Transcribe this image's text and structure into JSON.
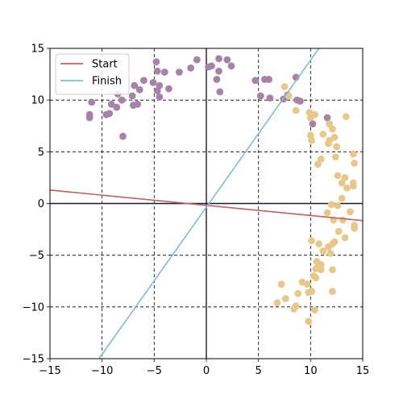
{
  "chart_data": {
    "type": "scatter",
    "title": "",
    "xlabel": "",
    "ylabel": "",
    "xlim": [
      -15,
      15
    ],
    "ylim": [
      -15,
      15
    ],
    "xticks": [
      -15,
      -10,
      -5,
      0,
      5,
      10,
      15
    ],
    "yticks": [
      -15,
      -10,
      -5,
      0,
      5,
      10,
      15
    ],
    "xtick_labels": [
      "−15",
      "−10",
      "−5",
      "0",
      "5",
      "10",
      "15"
    ],
    "ytick_labels": [
      "−15",
      "−10",
      "−5",
      "0",
      "5",
      "10",
      "15"
    ],
    "grid": true,
    "legend_position": "top-left",
    "lines": [
      {
        "name": "Start",
        "color": "#c06060",
        "x": [
          -15,
          15
        ],
        "y": [
          1.3,
          -1.65
        ]
      },
      {
        "name": "Finish",
        "color": "#80bcd0",
        "x": [
          -10.3,
          10.8
        ],
        "y": [
          -15,
          15
        ]
      }
    ],
    "series": [
      {
        "color": "#a681a8",
        "points": [
          [
            -11.2,
            8.3
          ],
          [
            -11.2,
            8.6
          ],
          [
            -11.0,
            9.8
          ],
          [
            -9.6,
            8.6
          ],
          [
            -9.3,
            8.7
          ],
          [
            -9.1,
            9.6
          ],
          [
            -8.6,
            9.3
          ],
          [
            -8.5,
            10.6
          ],
          [
            -8.1,
            10.0
          ],
          [
            -8.0,
            6.5
          ],
          [
            -7.1,
            10.4
          ],
          [
            -7.0,
            9.5
          ],
          [
            -6.9,
            11.4
          ],
          [
            -6.6,
            9.6
          ],
          [
            -6.4,
            11.0
          ],
          [
            -6.0,
            11.9
          ],
          [
            -5.1,
            11.7
          ],
          [
            -4.8,
            13.7
          ],
          [
            -4.7,
            12.8
          ],
          [
            -4.7,
            10.9
          ],
          [
            -4.5,
            10.3
          ],
          [
            -4.5,
            11.4
          ],
          [
            -4.0,
            12.7
          ],
          [
            -3.6,
            11.1
          ],
          [
            -2.6,
            12.7
          ],
          [
            -1.5,
            13.1
          ],
          [
            -0.9,
            13.9
          ],
          [
            0.2,
            13.2
          ],
          [
            0.5,
            13.3
          ],
          [
            1.0,
            12.0
          ],
          [
            1.2,
            12.8
          ],
          [
            1.2,
            14.0
          ],
          [
            1.3,
            10.8
          ],
          [
            2.0,
            13.9
          ],
          [
            2.4,
            13.3
          ],
          [
            4.7,
            11.9
          ],
          [
            5.2,
            10.4
          ],
          [
            5.6,
            12.0
          ],
          [
            6.0,
            12.0
          ],
          [
            6.1,
            10.2
          ],
          [
            7.4,
            10.1
          ],
          [
            7.8,
            10.5
          ],
          [
            8.6,
            12.2
          ],
          [
            8.7,
            10.0
          ],
          [
            9.0,
            9.9
          ],
          [
            10.2,
            7.7
          ],
          [
            11.6,
            8.3
          ]
        ]
      },
      {
        "color": "#e8c88a",
        "points": [
          [
            7.5,
            11.3
          ],
          [
            7.9,
            10.4
          ],
          [
            8.6,
            9.0
          ],
          [
            9.9,
            8.8
          ],
          [
            10.0,
            8.3
          ],
          [
            10.4,
            8.6
          ],
          [
            11.8,
            7.7
          ],
          [
            12.1,
            7.2
          ],
          [
            12.3,
            6.4
          ],
          [
            13.4,
            8.4
          ],
          [
            10.0,
            6.6
          ],
          [
            10.1,
            6.1
          ],
          [
            10.7,
            3.8
          ],
          [
            11.0,
            4.3
          ],
          [
            11.2,
            6.7
          ],
          [
            11.7,
            5.8
          ],
          [
            11.8,
            6.1
          ],
          [
            12.5,
            5.5
          ],
          [
            12.4,
            4.5
          ],
          [
            14.1,
            4.8
          ],
          [
            14.2,
            3.9
          ],
          [
            12.6,
            2.7
          ],
          [
            13.0,
            2.0
          ],
          [
            13.3,
            2.5
          ],
          [
            13.5,
            1.5
          ],
          [
            14.1,
            1.7
          ],
          [
            14.1,
            2.0
          ],
          [
            13.0,
            0.5
          ],
          [
            12.0,
            -0.1
          ],
          [
            12.6,
            -0.2
          ],
          [
            11.6,
            -0.9
          ],
          [
            13.8,
            -0.8
          ],
          [
            12.2,
            -1.6
          ],
          [
            13.1,
            -1.6
          ],
          [
            14.2,
            -2.1
          ],
          [
            14.2,
            -2.4
          ],
          [
            12.7,
            -2.7
          ],
          [
            13.3,
            -3.3
          ],
          [
            12.1,
            -3.9
          ],
          [
            12.3,
            -3.7
          ],
          [
            11.7,
            -4.2
          ],
          [
            10.1,
            -3.6
          ],
          [
            10.8,
            -3.9
          ],
          [
            11.2,
            -4.6
          ],
          [
            11.9,
            -4.8
          ],
          [
            10.6,
            -5.6
          ],
          [
            10.8,
            -6.1
          ],
          [
            11.0,
            -5.9
          ],
          [
            11.0,
            -6.4
          ],
          [
            10.5,
            -6.3
          ],
          [
            12.1,
            -6.4
          ],
          [
            10.3,
            -7.0
          ],
          [
            10.5,
            -7.2
          ],
          [
            9.7,
            -7.8
          ],
          [
            9.2,
            -7.6
          ],
          [
            7.2,
            -7.8
          ],
          [
            12.1,
            -8.5
          ],
          [
            9.8,
            -8.6
          ],
          [
            8.8,
            -8.7
          ],
          [
            10.1,
            -8.5
          ],
          [
            7.6,
            -9.2
          ],
          [
            6.8,
            -9.6
          ],
          [
            8.6,
            -9.9
          ],
          [
            8.4,
            -10.2
          ],
          [
            10.4,
            -10.3
          ],
          [
            9.8,
            -11.4
          ]
        ]
      }
    ]
  }
}
